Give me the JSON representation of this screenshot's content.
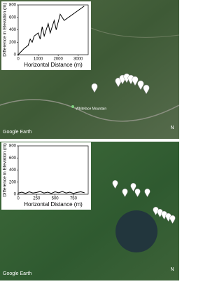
{
  "chart_data": [
    {
      "type": "line",
      "xlabel": "Horizontal Distance (m)",
      "ylabel": "Difference in Elevation (m)",
      "color": "#000000",
      "x": [
        0,
        300,
        500,
        600,
        700,
        800,
        1000,
        1100,
        1200,
        1300,
        1500,
        1600,
        1800,
        1900,
        2100,
        2300,
        3300
      ],
      "values": [
        0,
        100,
        150,
        250,
        200,
        300,
        350,
        250,
        450,
        300,
        500,
        350,
        550,
        400,
        650,
        550,
        780
      ],
      "xlim": [
        0,
        3500
      ],
      "ylim": [
        0,
        800
      ],
      "xticks": [
        0,
        1000,
        2000,
        3000
      ],
      "yticks": [
        0,
        200,
        400,
        600,
        800
      ]
    },
    {
      "type": "line",
      "xlabel": "Horizontal Distance (m)",
      "ylabel": "Difference in Elevation (m)",
      "color": "#000000",
      "x": [
        0,
        50,
        100,
        150,
        200,
        250,
        300,
        350,
        400,
        450,
        500,
        550,
        600,
        650,
        700,
        750,
        800,
        850,
        900
      ],
      "values": [
        20,
        35,
        15,
        40,
        20,
        30,
        45,
        20,
        35,
        15,
        40,
        25,
        45,
        20,
        35,
        15,
        30,
        40,
        25
      ],
      "xlim": [
        0,
        950
      ],
      "ylim": [
        0,
        800
      ],
      "xticks": [
        0,
        250,
        500,
        750
      ],
      "yticks": [
        0,
        200,
        400,
        600,
        800
      ]
    }
  ],
  "maps": [
    {
      "attribution": "Google Earth",
      "place_label": "Whiteface Mountain",
      "north": "N"
    },
    {
      "attribution": "Google Earth",
      "north": "N"
    }
  ]
}
